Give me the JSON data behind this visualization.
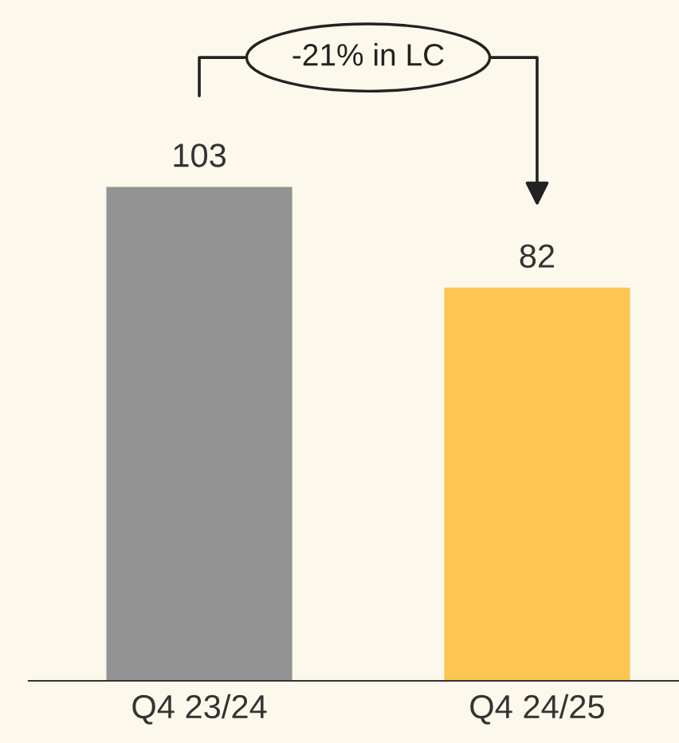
{
  "chart_data": {
    "type": "bar",
    "categories": [
      "Q4 23/24",
      "Q4 24/25"
    ],
    "values": [
      103,
      82
    ],
    "colors": [
      "#939393",
      "#fdc551"
    ],
    "data_labels": true,
    "ylim": [
      0,
      142
    ],
    "grid": false,
    "annotations": [
      "-21% in LC"
    ]
  }
}
